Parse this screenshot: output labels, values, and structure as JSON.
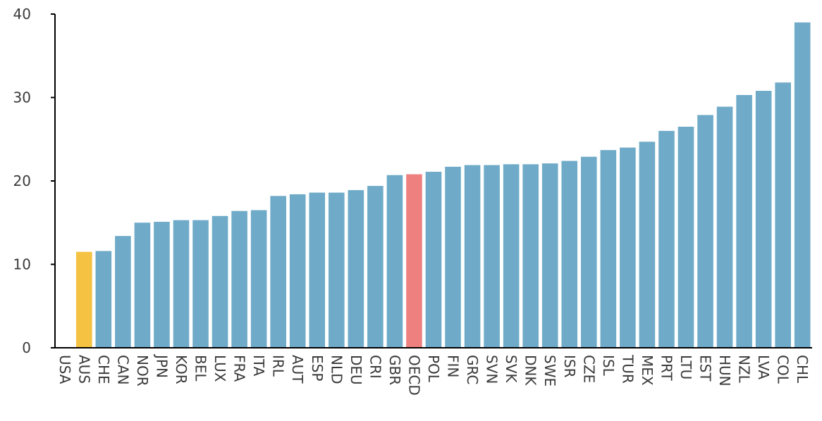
{
  "chart_data": {
    "type": "bar",
    "categories": [
      "USA",
      "AUS",
      "CHE",
      "CAN",
      "NOR",
      "JPN",
      "KOR",
      "BEL",
      "LUX",
      "FRA",
      "ITA",
      "IRL",
      "AUT",
      "ESP",
      "NLD",
      "DEU",
      "CRI",
      "GBR",
      "OECD",
      "POL",
      "FIN",
      "GRC",
      "SVN",
      "SVK",
      "DNK",
      "SWE",
      "ISR",
      "CZE",
      "ISL",
      "TUR",
      "MEX",
      "PRT",
      "LTU",
      "EST",
      "HUN",
      "NZL",
      "LVA",
      "COL",
      "CHL"
    ],
    "values": [
      null,
      11.5,
      11.6,
      13.4,
      15.0,
      15.1,
      15.3,
      15.3,
      15.8,
      16.4,
      16.5,
      18.2,
      18.4,
      18.6,
      18.6,
      18.9,
      19.4,
      20.7,
      20.8,
      21.1,
      21.7,
      21.9,
      21.9,
      22.0,
      22.0,
      22.1,
      22.4,
      22.9,
      23.7,
      24.0,
      24.7,
      26.0,
      26.5,
      27.9,
      28.9,
      30.3,
      30.8,
      31.8,
      39.0
    ],
    "highlights": {
      "AUS": "#F5C242",
      "OECD": "#EE8180"
    },
    "bar_color": "#6FABC8",
    "ylim": [
      0,
      40
    ],
    "yticks": [
      0,
      10,
      20,
      30,
      40
    ],
    "title": "",
    "xlabel": "",
    "ylabel": "",
    "grid": false,
    "legend": "none"
  }
}
